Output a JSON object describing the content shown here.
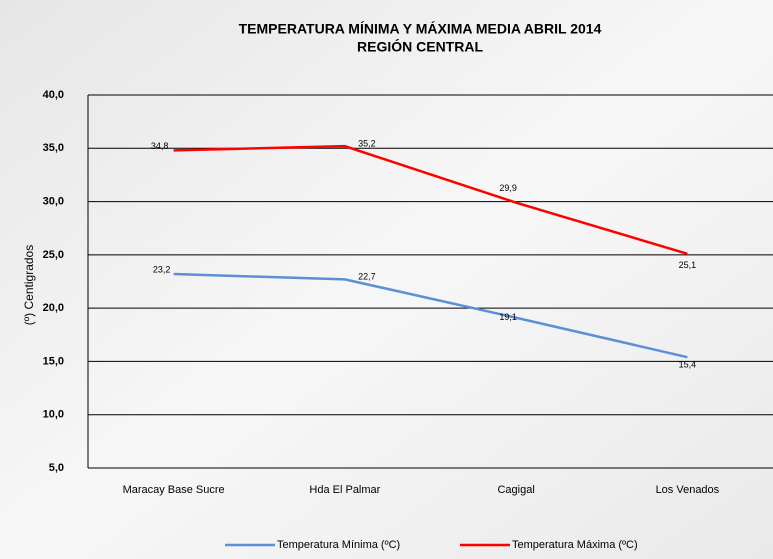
{
  "chart_data": {
    "type": "line",
    "title": "TEMPERATURA MÍNIMA Y MÁXIMA MEDIA ABRIL 2014",
    "subtitle": "REGIÓN CENTRAL",
    "y_label": "(º) Centigrados",
    "categories": [
      "Maracay Base Sucre",
      "Hda El Palmar",
      "Cagigal",
      "Los Venados"
    ],
    "series": [
      {
        "name": "Temperatura  Mínima (ºC)",
        "color": "#5b8fd6",
        "values": [
          23.2,
          22.7,
          19.1,
          15.4
        ],
        "value_labels": [
          "23,2",
          "22,7",
          "19,1",
          "15,4"
        ]
      },
      {
        "name": "Temperatura  Máxima (ºC)",
        "color": "#ff0000",
        "values": [
          34.8,
          35.2,
          29.9,
          25.1
        ],
        "value_labels": [
          "34,8",
          "35,2",
          "29,9",
          "25,1"
        ]
      }
    ],
    "ylim": [
      5,
      40
    ],
    "yticks": [
      {
        "value": 5,
        "label": "5,0"
      },
      {
        "value": 10,
        "label": "10,0"
      },
      {
        "value": 15,
        "label": "15,0"
      },
      {
        "value": 20,
        "label": "20,0"
      },
      {
        "value": 25,
        "label": "25,0"
      },
      {
        "value": 30,
        "label": "30,0"
      },
      {
        "value": 35,
        "label": "35,0"
      },
      {
        "value": 40,
        "label": "40,0"
      }
    ],
    "grid": true
  }
}
